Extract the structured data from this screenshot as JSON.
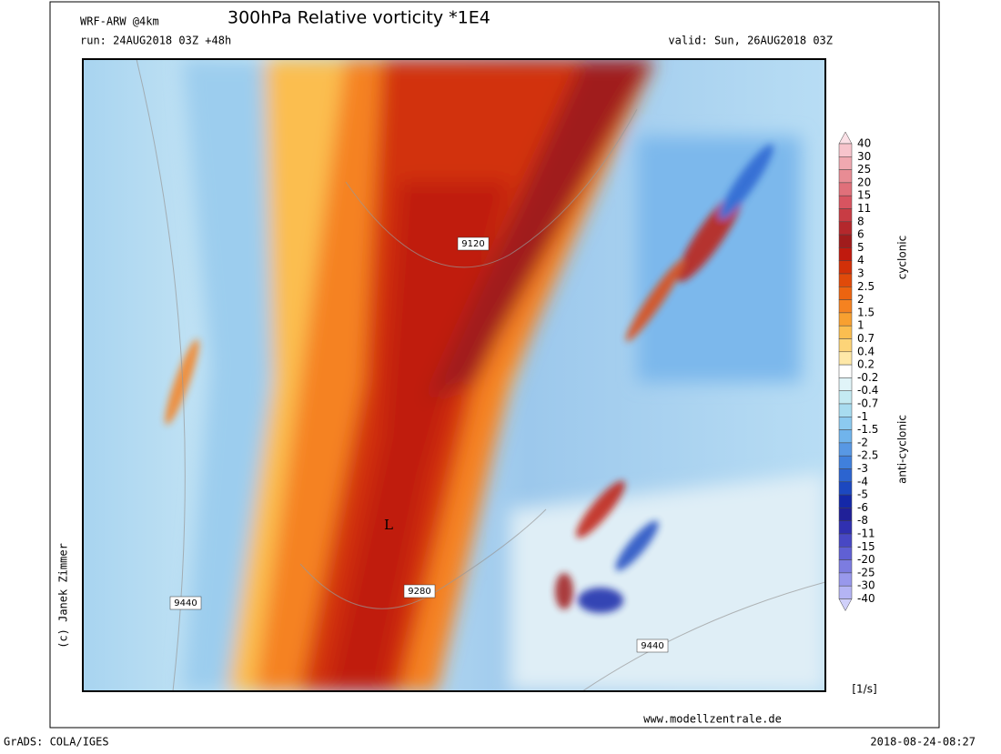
{
  "header": {
    "model": "WRF-ARW @4km",
    "title": "300hPa Relative vorticity *1E4",
    "run": "run: 24AUG2018 03Z +48h",
    "valid": "valid: Sun, 26AUG2018 03Z"
  },
  "map": {
    "contour_labels": [
      "9120",
      "9280",
      "9440",
      "9440"
    ],
    "low_marker": "L"
  },
  "colorbar": {
    "labels": [
      "40",
      "30",
      "25",
      "20",
      "15",
      "11",
      "8",
      "6",
      "5",
      "4",
      "3",
      "2.5",
      "2",
      "1.5",
      "1",
      "0.7",
      "0.4",
      "0.2",
      "-0.2",
      "-0.4",
      "-0.7",
      "-1",
      "-1.5",
      "-2",
      "-2.5",
      "-3",
      "-4",
      "-5",
      "-6",
      "-8",
      "-11",
      "-15",
      "-20",
      "-25",
      "-30",
      "-40"
    ],
    "colors": [
      "#fbe0e6",
      "#f7c4cc",
      "#f0a8b0",
      "#e88c94",
      "#e0707a",
      "#d85460",
      "#c83c44",
      "#b4282c",
      "#a01c1c",
      "#c01a0e",
      "#d23008",
      "#e04a0a",
      "#ec6410",
      "#f58220",
      "#f8a030",
      "#fbbe50",
      "#fdd478",
      "#fee8a8",
      "#ffffff",
      "#e0f4f8",
      "#c4eaf2",
      "#a8dcf0",
      "#8ccaf0",
      "#70b4ec",
      "#5898e4",
      "#4080dc",
      "#2c64d0",
      "#1c48c0",
      "#1428a8",
      "#202098",
      "#3030b0",
      "#4848c4",
      "#6060d4",
      "#7c7ce0",
      "#9898ec",
      "#b4b4f4",
      "#d0d0fa"
    ],
    "cyclonic": "cyclonic",
    "anticyclonic": "anti-cyclonic",
    "unit": "[1/s]"
  },
  "footer": {
    "copyright": "(c) Janek Zimmer",
    "website": "www.modellzentrale.de",
    "software": "GrADS: COLA/IGES",
    "timestamp": "2018-08-24-08:27"
  }
}
